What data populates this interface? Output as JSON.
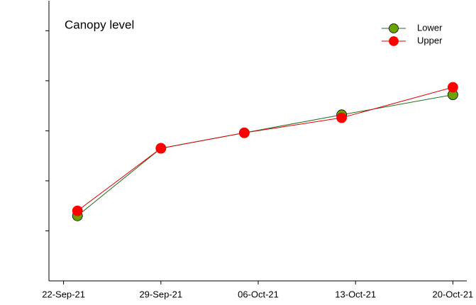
{
  "chart_data": {
    "type": "line",
    "x": [
      "2021-09-23",
      "2021-09-29",
      "2021-10-05",
      "2021-10-12",
      "2021-10-20"
    ],
    "series": [
      {
        "name": "Lower",
        "color": "#1f6e1f",
        "marker_color": "#6aa300",
        "values": [
          1.3,
          2.65,
          2.96,
          3.32,
          3.72
        ]
      },
      {
        "name": "Upper",
        "color": "#e00000",
        "marker_color": "#ff0000",
        "values": [
          1.4,
          2.65,
          2.96,
          3.26,
          3.87
        ]
      }
    ],
    "legend_title": "Canopy level",
    "legend": "upper right",
    "xlim": [
      "2021-09-21",
      "2021-10-21"
    ],
    "xticks": [
      {
        "value": "2021-09-22",
        "label": "22-Sep-21"
      },
      {
        "value": "2021-09-29",
        "label": "29-Sep-21"
      },
      {
        "value": "2021-10-06",
        "label": "06-Oct-21"
      },
      {
        "value": "2021-10-13",
        "label": "13-Oct-21"
      },
      {
        "value": "2021-10-20",
        "label": "20-Oct-21"
      }
    ],
    "ylim": [
      0,
      5.6
    ],
    "yticks": [
      1,
      2,
      3,
      4,
      5
    ],
    "grid": false
  }
}
